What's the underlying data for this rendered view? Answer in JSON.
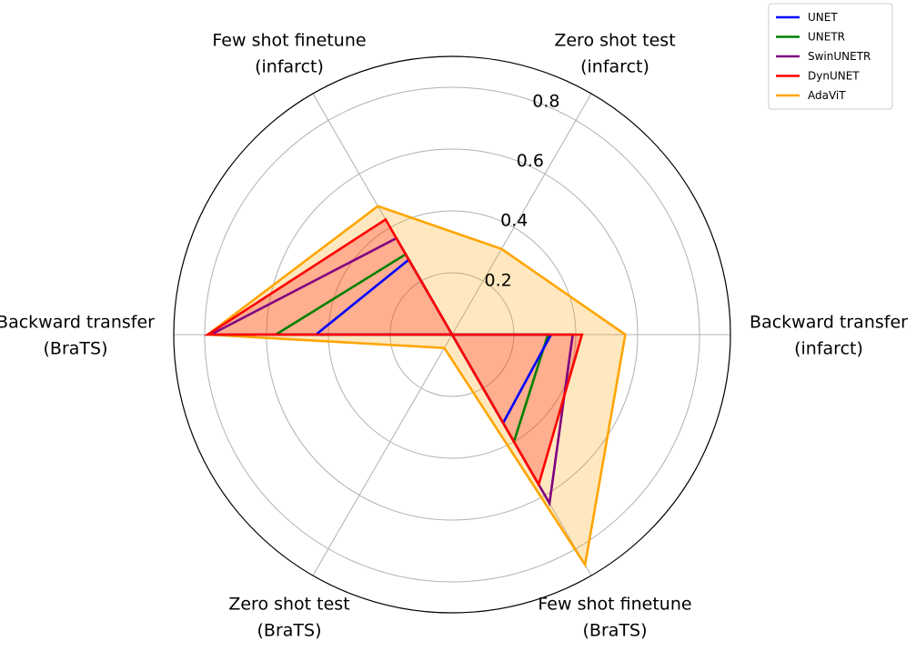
{
  "chart_data": {
    "type": "radar",
    "axes": [
      {
        "lines": [
          "Backward transfer",
          "(infarct)"
        ]
      },
      {
        "lines": [
          "Zero shot test",
          "(infarct)"
        ]
      },
      {
        "lines": [
          "Few shot finetune",
          "(infarct)"
        ]
      },
      {
        "lines": [
          "Backward transfer",
          "(BraTS)"
        ]
      },
      {
        "lines": [
          "Zero shot test",
          "(BraTS)"
        ]
      },
      {
        "lines": [
          "Few shot finetune",
          "(BraTS)"
        ]
      }
    ],
    "ticks": [
      {
        "value": 0.2,
        "label": "0.2"
      },
      {
        "value": 0.4,
        "label": "0.4"
      },
      {
        "value": 0.6,
        "label": "0.6"
      },
      {
        "value": 0.8,
        "label": "0.8"
      }
    ],
    "rlim": [
      0,
      0.9
    ],
    "grid": true,
    "legend": "top-right",
    "series": [
      {
        "name": "AdaViT",
        "color": "#FFA500",
        "fill": true,
        "values": [
          0.56,
          0.32,
          0.48,
          0.79,
          0.05,
          0.86
        ]
      },
      {
        "name": "DynUNET",
        "color": "#FF0000",
        "fill": true,
        "values": [
          0.42,
          0.0,
          0.43,
          0.79,
          0.0,
          0.56
        ]
      },
      {
        "name": "SwinUNETR",
        "color": "#800080",
        "fill": false,
        "values": [
          0.39,
          0.0,
          0.36,
          0.78,
          0.0,
          0.63
        ]
      },
      {
        "name": "UNETR",
        "color": "#008000",
        "fill": false,
        "values": [
          0.31,
          0.0,
          0.3,
          0.57,
          0.0,
          0.4
        ]
      },
      {
        "name": "UNET",
        "color": "#0000FF",
        "fill": false,
        "values": [
          0.32,
          0.0,
          0.28,
          0.44,
          0.0,
          0.33
        ]
      }
    ],
    "legend_order": [
      "UNET",
      "UNETR",
      "SwinUNETR",
      "DynUNET",
      "AdaViT"
    ]
  }
}
